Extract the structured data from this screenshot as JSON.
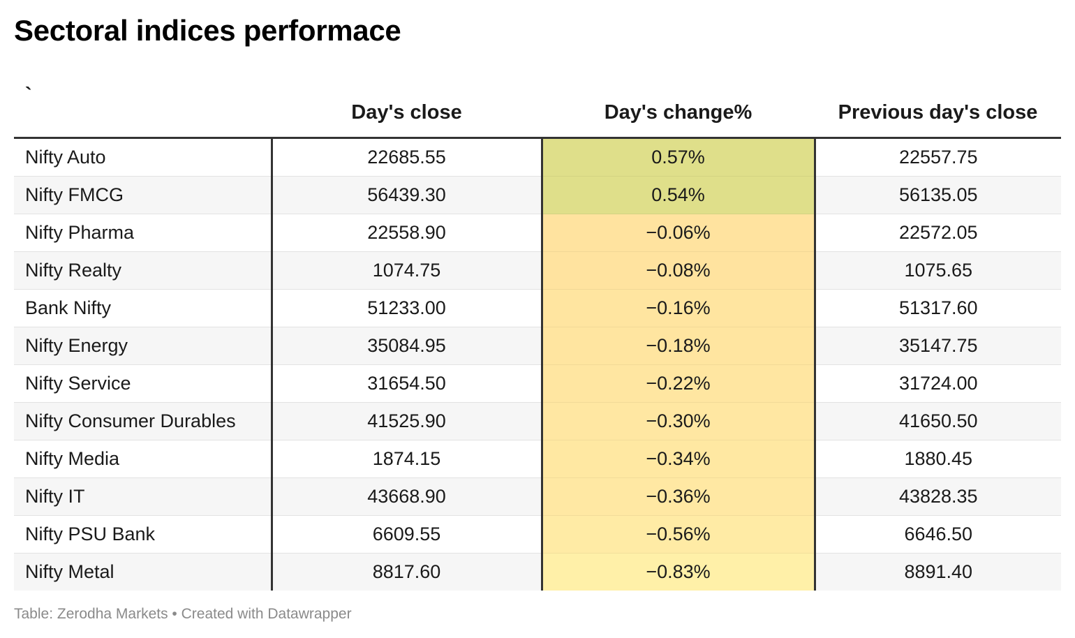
{
  "title": "Sectoral indices performace",
  "source": "Table: Zerodha Markets • Created with Datawrapper",
  "colors": {
    "positive_cell": "#dfdf8a",
    "negative_cell_light": "#fff0a8",
    "negative_cell_dark": "#ffe39f",
    "divider": "#333333"
  },
  "chart_data": {
    "type": "table",
    "columns": [
      "`",
      "Day's close",
      "Day's change%",
      "Previous day's close"
    ],
    "rows": [
      {
        "index": "Nifty Auto",
        "close": "22685.55",
        "change": "0.57%",
        "change_value": 0.57,
        "prev_close": "22557.75"
      },
      {
        "index": "Nifty FMCG",
        "close": "56439.30",
        "change": "0.54%",
        "change_value": 0.54,
        "prev_close": "56135.05"
      },
      {
        "index": "Nifty Pharma",
        "close": "22558.90",
        "change": "−0.06%",
        "change_value": -0.06,
        "prev_close": "22572.05"
      },
      {
        "index": "Nifty Realty",
        "close": "1074.75",
        "change": "−0.08%",
        "change_value": -0.08,
        "prev_close": "1075.65"
      },
      {
        "index": "Bank Nifty",
        "close": "51233.00",
        "change": "−0.16%",
        "change_value": -0.16,
        "prev_close": "51317.60"
      },
      {
        "index": "Nifty Energy",
        "close": "35084.95",
        "change": "−0.18%",
        "change_value": -0.18,
        "prev_close": "35147.75"
      },
      {
        "index": "Nifty Service",
        "close": "31654.50",
        "change": "−0.22%",
        "change_value": -0.22,
        "prev_close": "31724.00"
      },
      {
        "index": "Nifty Consumer Durables",
        "close": "41525.90",
        "change": "−0.30%",
        "change_value": -0.3,
        "prev_close": "41650.50"
      },
      {
        "index": "Nifty Media",
        "close": "1874.15",
        "change": "−0.34%",
        "change_value": -0.34,
        "prev_close": "1880.45"
      },
      {
        "index": "Nifty IT",
        "close": "43668.90",
        "change": "−0.36%",
        "change_value": -0.36,
        "prev_close": "43828.35"
      },
      {
        "index": "Nifty PSU Bank",
        "close": "6609.55",
        "change": "−0.56%",
        "change_value": -0.56,
        "prev_close": "6646.50"
      },
      {
        "index": "Nifty Metal",
        "close": "8817.60",
        "change": "−0.83%",
        "change_value": -0.83,
        "prev_close": "8891.40"
      }
    ]
  }
}
